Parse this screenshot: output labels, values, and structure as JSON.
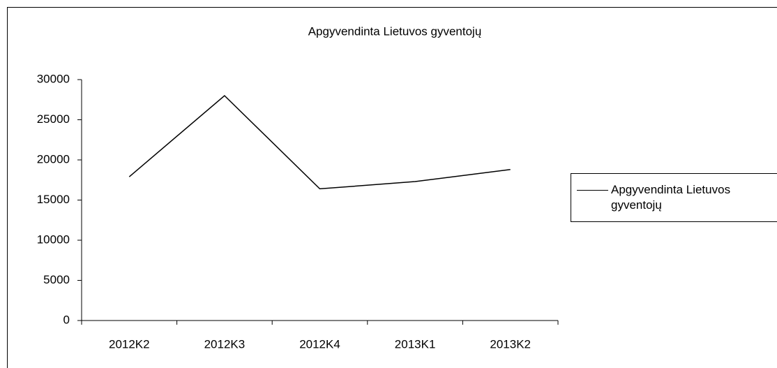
{
  "chart_data": {
    "type": "line",
    "title": "Apgyvendinta Lietuvos gyventojų",
    "categories": [
      "2012K2",
      "2012K3",
      "2012K4",
      "2013K1",
      "2013K2"
    ],
    "series": [
      {
        "name": "Apgyvendinta Lietuvos gyventojų",
        "color": "#000000",
        "values": [
          17900,
          28000,
          16400,
          17300,
          18800
        ]
      }
    ],
    "ylim": [
      0,
      30000
    ],
    "yticks": [
      0,
      5000,
      10000,
      15000,
      20000,
      25000,
      30000
    ],
    "grid": false,
    "legend": "right"
  }
}
